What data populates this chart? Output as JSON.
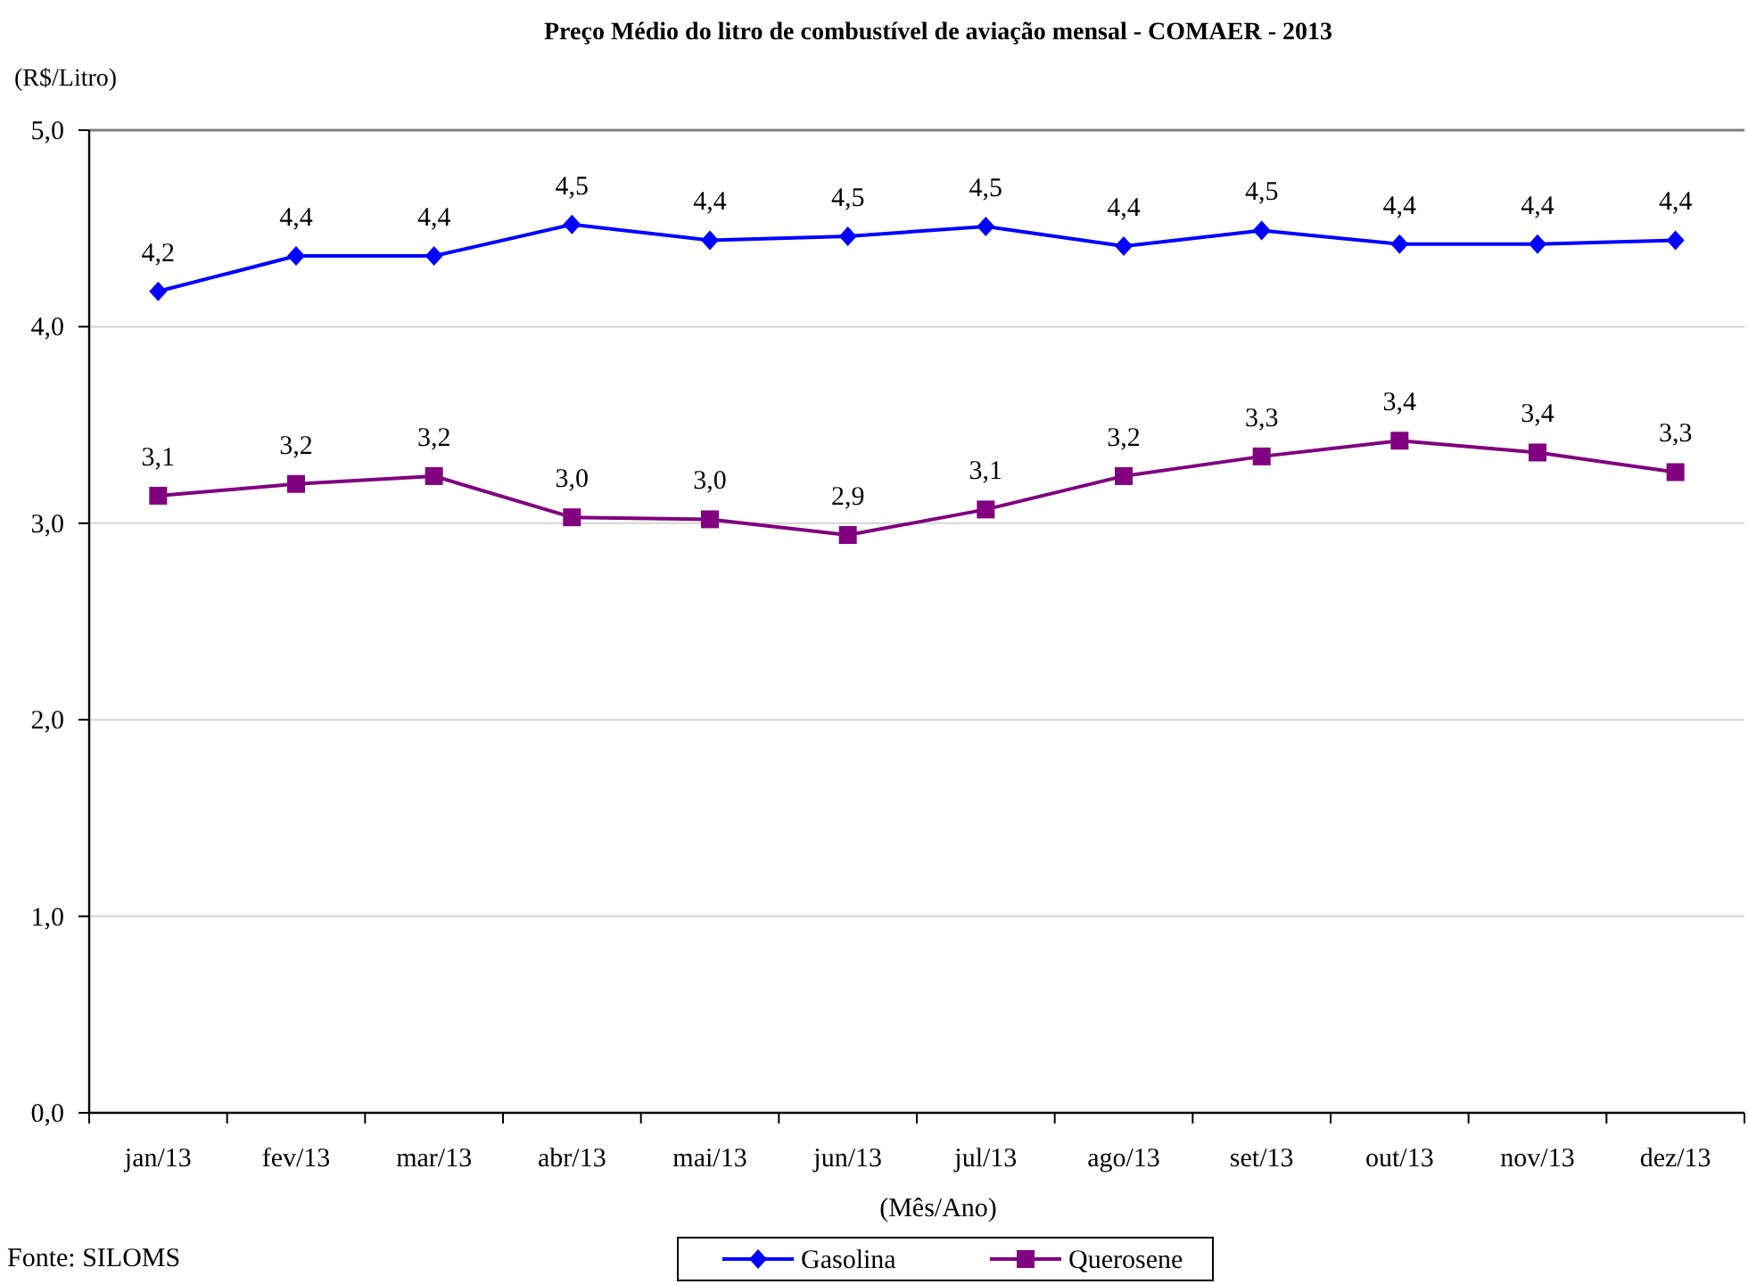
{
  "chart_data": {
    "type": "line",
    "title": "Preço Médio do litro de combustível de aviação mensal - COMAER - 2013",
    "xlabel": "(Mês/Ano)",
    "ylabel": "(R$/Litro)",
    "categories": [
      "jan/13",
      "fev/13",
      "mar/13",
      "abr/13",
      "mai/13",
      "jun/13",
      "jul/13",
      "ago/13",
      "set/13",
      "out/13",
      "nov/13",
      "dez/13"
    ],
    "series": [
      {
        "name": "Gasolina",
        "color": "#0000ff",
        "marker": "diamond",
        "values": [
          4.18,
          4.36,
          4.36,
          4.52,
          4.44,
          4.46,
          4.51,
          4.41,
          4.49,
          4.42,
          4.42,
          4.44
        ],
        "value_labels": [
          "4,2",
          "4,4",
          "4,4",
          "4,5",
          "4,4",
          "4,5",
          "4,5",
          "4,4",
          "4,5",
          "4,4",
          "4,4",
          "4,4"
        ]
      },
      {
        "name": "Querosene",
        "color": "#800080",
        "marker": "square",
        "values": [
          3.14,
          3.2,
          3.24,
          3.03,
          3.02,
          2.94,
          3.07,
          3.24,
          3.34,
          3.42,
          3.36,
          3.26
        ],
        "value_labels": [
          "3,1",
          "3,2",
          "3,2",
          "3,0",
          "3,0",
          "2,9",
          "3,1",
          "3,2",
          "3,3",
          "3,4",
          "3,4",
          "3,3"
        ]
      }
    ],
    "ylim": [
      0,
      5
    ],
    "yticks": [
      {
        "value": 0,
        "label": "0,0"
      },
      {
        "value": 1,
        "label": "1,0"
      },
      {
        "value": 2,
        "label": "2,0"
      },
      {
        "value": 3,
        "label": "3,0"
      },
      {
        "value": 4,
        "label": "4,0"
      },
      {
        "value": 5,
        "label": "5,0"
      }
    ],
    "grid": "y",
    "legend": "bottom",
    "line_style": "solid",
    "annotations": [
      "Fonte: SILOMS"
    ]
  }
}
